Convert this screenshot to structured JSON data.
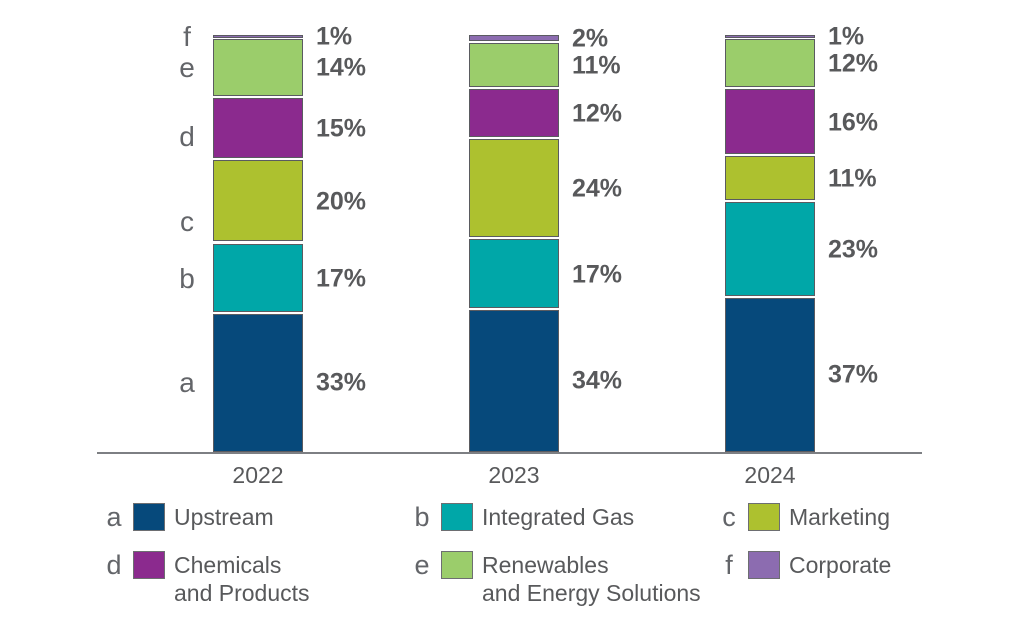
{
  "chart_data": {
    "type": "bar",
    "subtype": "stacked-percentage-column",
    "title": "",
    "xlabel": "",
    "ylabel": "",
    "ylim": [
      0,
      100
    ],
    "grid": false,
    "legend_position": "bottom",
    "value_suffix": "%",
    "categories": [
      "2022",
      "2023",
      "2024"
    ],
    "series": [
      {
        "key": "a",
        "name": "Upstream",
        "color": "#06497b",
        "values": [
          33,
          34,
          37
        ]
      },
      {
        "key": "b",
        "name": "Integrated Gas",
        "color": "#00a7a8",
        "values": [
          17,
          17,
          23
        ]
      },
      {
        "key": "c",
        "name": "Marketing",
        "color": "#adc12f",
        "values": [
          20,
          24,
          11
        ]
      },
      {
        "key": "d",
        "name": "Chemicals and Products",
        "color": "#8b2a8e",
        "values": [
          15,
          12,
          16
        ]
      },
      {
        "key": "e",
        "name": "Renewables and Energy Solutions",
        "color": "#9bcd6b",
        "values": [
          14,
          11,
          12
        ]
      },
      {
        "key": "f",
        "name": "Corporate",
        "color": "#8c6cb0",
        "values": [
          1,
          2,
          1
        ]
      }
    ]
  },
  "legend": {
    "items": [
      {
        "key": "a",
        "color": "#06497b",
        "label": "Upstream",
        "label2": ""
      },
      {
        "key": "b",
        "color": "#00a7a8",
        "label": "Integrated Gas",
        "label2": ""
      },
      {
        "key": "c",
        "color": "#adc12f",
        "label": "Marketing",
        "label2": ""
      },
      {
        "key": "d",
        "color": "#8b2a8e",
        "label": "Chemicals",
        "label2": "and Products"
      },
      {
        "key": "e",
        "color": "#9bcd6b",
        "label": "Renewables",
        "label2": "and Energy Solutions"
      },
      {
        "key": "f",
        "color": "#8c6cb0",
        "label": "Corporate",
        "label2": ""
      }
    ]
  },
  "colors": {
    "text": "#58595b",
    "segment_border": "#5a5b60",
    "axis": "#7d7f83",
    "background": "#ffffff"
  }
}
